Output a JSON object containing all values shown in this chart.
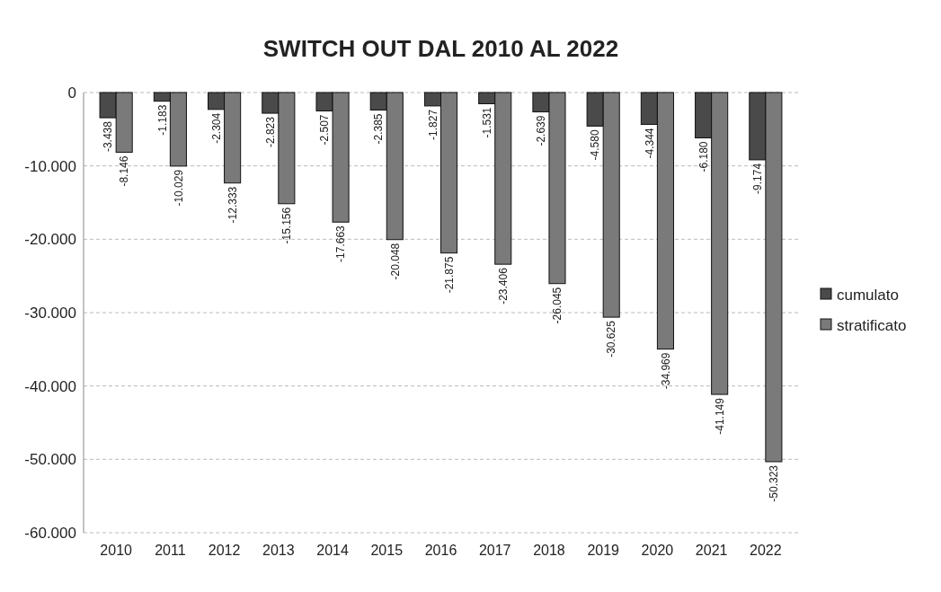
{
  "chart_data": {
    "type": "bar",
    "title": "SWITCH OUT DAL 2010 AL 2022",
    "categories": [
      "2010",
      "2011",
      "2012",
      "2013",
      "2014",
      "2015",
      "2016",
      "2017",
      "2018",
      "2019",
      "2020",
      "2021",
      "2022"
    ],
    "series": [
      {
        "name": "cumulato",
        "color": "#4a4a4a",
        "values": [
          -3438,
          -1183,
          -2304,
          -2823,
          -2507,
          -2385,
          -1827,
          -1531,
          -2639,
          -4580,
          -4344,
          -6180,
          -9174
        ],
        "value_labels": [
          "-3.438",
          "-1.183",
          "-2.304",
          "-2.823",
          "-2.507",
          "-2.385",
          "-1.827",
          "-1.531",
          "-2.639",
          "-4.580",
          "-4.344",
          "-6.180",
          "-9.174"
        ]
      },
      {
        "name": "stratificato",
        "color": "#7a7a7a",
        "values": [
          -8146,
          -10029,
          -12333,
          -15156,
          -17663,
          -20048,
          -21875,
          -23406,
          -26045,
          -30625,
          -34969,
          -41149,
          -50323
        ],
        "value_labels": [
          "-8.146",
          "-10.029",
          "-12.333",
          "-15.156",
          "-17.663",
          "-20.048",
          "-21.875",
          "-23.406",
          "-26.045",
          "-30.625",
          "-34.969",
          "-41.149",
          "-50.323"
        ]
      }
    ],
    "ylim": [
      -60000,
      0
    ],
    "yticks": [
      0,
      {
        "value": -10000,
        "label": "-10.000"
      },
      {
        "value": -20000,
        "label": "-20.000"
      },
      {
        "value": -30000,
        "label": "-30.000"
      },
      {
        "value": -40000,
        "label": "-40.000"
      },
      {
        "value": -50000,
        "label": "-50.000"
      },
      {
        "value": -60000,
        "label": "-60.000"
      }
    ],
    "grid": "y",
    "legend": "right"
  }
}
